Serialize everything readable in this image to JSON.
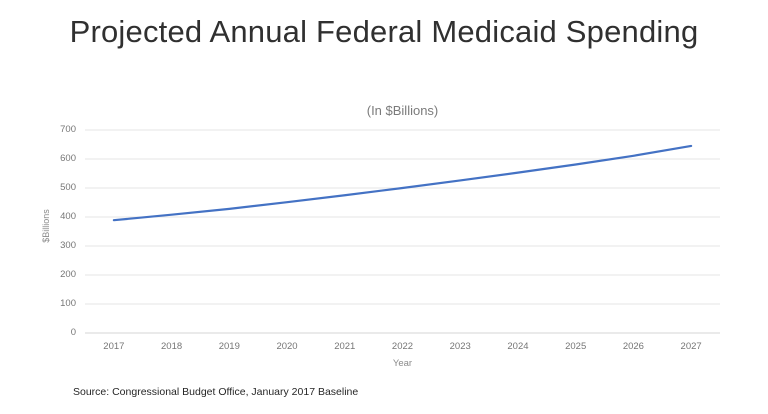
{
  "slide": {
    "title": "Projected Annual Federal Medicaid Spending",
    "source": "Source: Congressional Budget Office, January 2017 Baseline"
  },
  "chart_data": {
    "type": "line",
    "title": "(In $Billions)",
    "categories": [
      "2017",
      "2018",
      "2019",
      "2020",
      "2021",
      "2022",
      "2023",
      "2024",
      "2025",
      "2026",
      "2027"
    ],
    "values": [
      389,
      408,
      428,
      451,
      475,
      500,
      526,
      553,
      581,
      611,
      645
    ],
    "xlabel": "Year",
    "ylabel": "$Billions",
    "ylim": [
      0,
      700
    ],
    "yticks": [
      0,
      100,
      200,
      300,
      400,
      500,
      600,
      700
    ],
    "grid": true,
    "legend": "none",
    "line_color": "#4472C4",
    "grid_color": "#E4E4E4",
    "axis_line_color": "#D6D6D6"
  }
}
